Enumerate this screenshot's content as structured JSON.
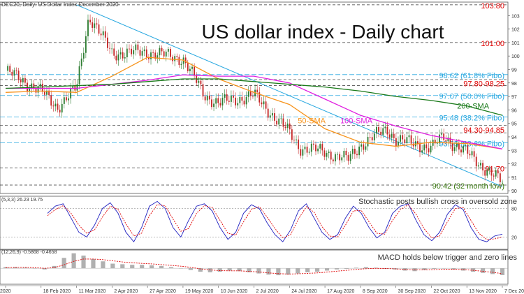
{
  "chart_data": [
    {
      "type": "candlestick",
      "header": "DEC20, Daily: US Dollar Index December 2020",
      "title": "US dollar index - Daily chart",
      "x_ticks": [
        "2020",
        "18 Feb 2020",
        "11 Mar 2020",
        "2 Apr 2020",
        "27 Apr 2020",
        "19 May 2020",
        "10 Jun 2020",
        "2 Jul 2020",
        "24 Jul 2020",
        "17 Aug 2020",
        "8 Sep 2020",
        "30 Sep 2020",
        "22 Oct 2020",
        "13 Nov 2020",
        "7 Dec 2020"
      ],
      "y_ticks": [
        "103",
        "102",
        "101",
        "100",
        "99",
        "98",
        "97",
        "96",
        "95",
        "94",
        "93",
        "92",
        "91",
        "90"
      ],
      "ylim": [
        89.8,
        104.0
      ],
      "close_path": [
        {
          "x": "2020",
          "y": 98.9
        },
        {
          "x": "18 Feb 2020",
          "y": 97.4
        },
        {
          "x": "28 Feb 2020",
          "y": 96.2
        },
        {
          "x": "11 Mar 2020",
          "y": 97.6
        },
        {
          "x": "19 Mar 2020",
          "y": 103.0
        },
        {
          "x": "2 Apr 2020",
          "y": 100.2
        },
        {
          "x": "27 Apr 2020",
          "y": 100.3
        },
        {
          "x": "19 May 2020",
          "y": 99.8
        },
        {
          "x": "1 Jun 2020",
          "y": 97.1
        },
        {
          "x": "10 Jun 2020",
          "y": 96.5
        },
        {
          "x": "2 Jul 2020",
          "y": 97.1
        },
        {
          "x": "24 Jul 2020",
          "y": 94.3
        },
        {
          "x": "31 Jul 2020",
          "y": 93.2
        },
        {
          "x": "17 Aug 2020",
          "y": 92.9
        },
        {
          "x": "1 Sep 2020",
          "y": 92.3
        },
        {
          "x": "8 Sep 2020",
          "y": 93.4
        },
        {
          "x": "25 Sep 2020",
          "y": 94.6
        },
        {
          "x": "30 Sep 2020",
          "y": 93.8
        },
        {
          "x": "22 Oct 2020",
          "y": 93.2
        },
        {
          "x": "30 Oct 2020",
          "y": 94.0
        },
        {
          "x": "13 Nov 2020",
          "y": 92.8
        },
        {
          "x": "7 Dec 2020",
          "y": 90.6
        }
      ],
      "series": [
        {
          "name": "50-SMA",
          "color": "#f7941d",
          "points": [
            {
              "x": "2020",
              "y": 97.3
            },
            {
              "x": "18 Feb 2020",
              "y": 97.4
            },
            {
              "x": "11 Mar 2020",
              "y": 97.3
            },
            {
              "x": "2 Apr 2020",
              "y": 98.5
            },
            {
              "x": "27 Apr 2020",
              "y": 99.9
            },
            {
              "x": "19 May 2020",
              "y": 99.7
            },
            {
              "x": "10 Jun 2020",
              "y": 98.3
            },
            {
              "x": "2 Jul 2020",
              "y": 97.3
            },
            {
              "x": "24 Jul 2020",
              "y": 96.4
            },
            {
              "x": "17 Aug 2020",
              "y": 94.6
            },
            {
              "x": "8 Sep 2020",
              "y": 93.6
            },
            {
              "x": "30 Sep 2020",
              "y": 93.3
            },
            {
              "x": "22 Oct 2020",
              "y": 93.6
            },
            {
              "x": "13 Nov 2020",
              "y": 93.5
            },
            {
              "x": "7 Dec 2020",
              "y": 93.1
            }
          ]
        },
        {
          "name": "100-SMA",
          "color": "#e020e0",
          "points": [
            {
              "x": "2020",
              "y": 97.6
            },
            {
              "x": "18 Feb 2020",
              "y": 97.6
            },
            {
              "x": "11 Mar 2020",
              "y": 97.6
            },
            {
              "x": "2 Apr 2020",
              "y": 97.9
            },
            {
              "x": "27 Apr 2020",
              "y": 98.2
            },
            {
              "x": "19 May 2020",
              "y": 98.6
            },
            {
              "x": "10 Jun 2020",
              "y": 98.5
            },
            {
              "x": "2 Jul 2020",
              "y": 98.5
            },
            {
              "x": "24 Jul 2020",
              "y": 98.0
            },
            {
              "x": "17 Aug 2020",
              "y": 96.8
            },
            {
              "x": "8 Sep 2020",
              "y": 95.6
            },
            {
              "x": "30 Sep 2020",
              "y": 94.8
            },
            {
              "x": "22 Oct 2020",
              "y": 94.1
            },
            {
              "x": "13 Nov 2020",
              "y": 93.6
            },
            {
              "x": "7 Dec 2020",
              "y": 93.1
            }
          ]
        },
        {
          "name": "200-SMA",
          "color": "#1a7a1a",
          "points": [
            {
              "x": "2020",
              "y": 97.6
            },
            {
              "x": "18 Feb 2020",
              "y": 97.7
            },
            {
              "x": "11 Mar 2020",
              "y": 97.8
            },
            {
              "x": "2 Apr 2020",
              "y": 97.9
            },
            {
              "x": "27 Apr 2020",
              "y": 98.1
            },
            {
              "x": "19 May 2020",
              "y": 98.3
            },
            {
              "x": "10 Jun 2020",
              "y": 98.3
            },
            {
              "x": "2 Jul 2020",
              "y": 98.1
            },
            {
              "x": "24 Jul 2020",
              "y": 97.9
            },
            {
              "x": "17 Aug 2020",
              "y": 97.7
            },
            {
              "x": "8 Sep 2020",
              "y": 97.4
            },
            {
              "x": "30 Sep 2020",
              "y": 97.0
            },
            {
              "x": "22 Oct 2020",
              "y": 96.7
            },
            {
              "x": "13 Nov 2020",
              "y": 96.3
            },
            {
              "x": "7 Dec 2020",
              "y": 95.6
            }
          ]
        }
      ],
      "horizontal_levels": [
        {
          "label": "103.80",
          "value": 103.8,
          "color": "#e00000",
          "style": "dashed"
        },
        {
          "label": "101.00",
          "value": 101.0,
          "color": "#e00000",
          "style": "dashed"
        },
        {
          "label": "98.62 (61.8% Fibo)",
          "value": 98.62,
          "color": "#29a8e0",
          "style": "dashed"
        },
        {
          "label": "97.80-98.25",
          "value": 97.8,
          "color": "#e00000",
          "style": "dashed",
          "value2": 98.25
        },
        {
          "label": "97.07 (50.0% Fibo)",
          "value": 97.07,
          "color": "#29a8e0",
          "style": "dashed"
        },
        {
          "label": "95.48 (38.2% Fibo)",
          "value": 95.48,
          "color": "#29a8e0",
          "style": "dashed"
        },
        {
          "label": "94.30-94.85",
          "value": 94.3,
          "color": "#e00000",
          "style": "dashed",
          "value2": 94.85
        },
        {
          "label": "93.55 (23.6% Fibo)",
          "value": 93.55,
          "color": "#29a8e0",
          "style": "dashed"
        },
        {
          "label": "91.70",
          "value": 91.7,
          "color": "#e00000",
          "style": "dashed"
        },
        {
          "label": "90.42 (32 month low)",
          "value": 90.42,
          "color": "#3a7a10",
          "style": "dashed"
        }
      ],
      "trendline": {
        "from": {
          "x": "11 Mar 2020",
          "y": 103.8
        },
        "to": {
          "x": "7 Dec 2020",
          "y": 90.3
        },
        "color": "#29a8e0"
      },
      "annotations": [
        "50-SMA",
        "100-SMA",
        "200-SMA"
      ]
    },
    {
      "type": "line",
      "header": "(5,3,3) 26.23 19.75",
      "annotation": "Stochastic posts bullish cross in oversold zone",
      "ylim": [
        0,
        100
      ],
      "levels": [
        20,
        80
      ],
      "series": [
        {
          "name": "%K",
          "color": "#2020c0",
          "values": [
            70,
            85,
            90,
            60,
            30,
            20,
            45,
            80,
            92,
            70,
            30,
            10,
            40,
            85,
            95,
            80,
            40,
            20,
            55,
            85,
            90,
            75,
            40,
            15,
            30,
            70,
            88,
            80,
            50,
            25,
            10,
            35,
            75,
            90,
            60,
            30,
            15,
            25,
            60,
            85,
            70,
            40,
            18,
            30,
            70,
            85,
            90,
            55,
            25,
            12,
            30,
            68,
            88,
            78,
            40,
            15,
            10,
            22,
            26
          ]
        },
        {
          "name": "%D",
          "color": "#e00000",
          "values": [
            65,
            78,
            86,
            70,
            45,
            28,
            35,
            62,
            85,
            78,
            48,
            22,
            28,
            65,
            88,
            86,
            58,
            32,
            38,
            70,
            86,
            82,
            55,
            28,
            24,
            52,
            78,
            84,
            62,
            38,
            18,
            25,
            58,
            84,
            72,
            42,
            22,
            20,
            45,
            75,
            76,
            52,
            28,
            26,
            55,
            78,
            88,
            68,
            38,
            18,
            22,
            52,
            80,
            82,
            55,
            28,
            15,
            16,
            20
          ]
        }
      ]
    },
    {
      "type": "bar",
      "header": "(12,26,9) -0.5868 -0.4658",
      "annotation": "MACD holds below trigger and zero lines",
      "ylim": [
        -1.2,
        1.4
      ],
      "series": [
        {
          "name": "MACD",
          "color": "#b0b0b0",
          "values": [
            0.1,
            0.1,
            0.05,
            0.0,
            -0.1,
            0.2,
            0.9,
            1.3,
            1.1,
            0.8,
            0.6,
            0.4,
            0.35,
            0.3,
            0.3,
            0.25,
            0.2,
            0.1,
            0.0,
            -0.15,
            -0.3,
            -0.35,
            -0.3,
            -0.2,
            -0.25,
            -0.35,
            -0.45,
            -0.55,
            -0.6,
            -0.55,
            -0.45,
            -0.35,
            -0.3,
            -0.2,
            -0.1,
            -0.05,
            0.05,
            0.1,
            0.05,
            -0.05,
            -0.1,
            -0.2,
            -0.25,
            -0.15,
            -0.05,
            0.0,
            -0.1,
            -0.2,
            -0.3,
            -0.4,
            -0.5,
            -0.59
          ]
        },
        {
          "name": "Signal",
          "color": "#e00000",
          "values": [
            0.05,
            0.08,
            0.08,
            0.05,
            0.0,
            0.05,
            0.3,
            0.6,
            0.8,
            0.8,
            0.75,
            0.65,
            0.55,
            0.48,
            0.42,
            0.38,
            0.32,
            0.25,
            0.18,
            0.08,
            -0.05,
            -0.15,
            -0.2,
            -0.22,
            -0.22,
            -0.27,
            -0.32,
            -0.4,
            -0.46,
            -0.5,
            -0.48,
            -0.44,
            -0.4,
            -0.33,
            -0.25,
            -0.18,
            -0.1,
            -0.04,
            -0.01,
            -0.02,
            -0.05,
            -0.1,
            -0.15,
            -0.15,
            -0.12,
            -0.08,
            -0.08,
            -0.12,
            -0.18,
            -0.26,
            -0.35,
            -0.47
          ]
        }
      ]
    }
  ],
  "colors": {
    "bull": "#2e7d32",
    "bear": "#c62828",
    "grid": "#333333",
    "fib": "#29a8e0",
    "res": "#e00000"
  }
}
